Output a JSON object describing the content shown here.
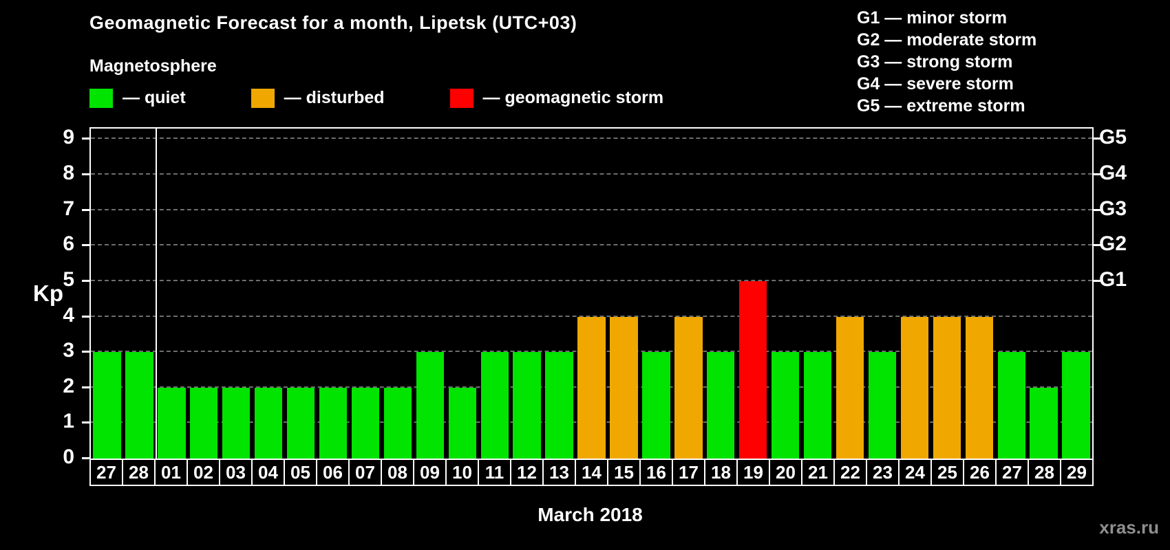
{
  "header": {
    "title": "Geomagnetic Forecast for a month, Lipetsk (UTC+03)",
    "subtitle": "Magnetosphere"
  },
  "legend": {
    "items": [
      {
        "key": "quiet",
        "label": "— quiet",
        "color": "#00e400"
      },
      {
        "key": "disturbed",
        "label": "— disturbed",
        "color": "#f0a800"
      },
      {
        "key": "storm",
        "label": "— geomagnetic storm",
        "color": "#ff0000"
      }
    ]
  },
  "g_legend": {
    "items": [
      "G1 — minor storm",
      "G2 — moderate storm",
      "G3 — strong storm",
      "G4 — severe storm",
      "G5 — extreme storm"
    ]
  },
  "chart_data": {
    "type": "bar",
    "title": "Geomagnetic Forecast for a month, Lipetsk (UTC+03)",
    "ylabel": "Kp",
    "xlabel": "March 2018",
    "ylim": [
      0,
      9.3
    ],
    "yticks": [
      0,
      1,
      2,
      3,
      4,
      5,
      6,
      7,
      8,
      9
    ],
    "grid": "dashed horizontal",
    "right_axis_labels": [
      {
        "label": "G5",
        "kp": 9
      },
      {
        "label": "G4",
        "kp": 8
      },
      {
        "label": "G3",
        "kp": 7
      },
      {
        "label": "G2",
        "kp": 6
      },
      {
        "label": "G1",
        "kp": 5
      }
    ],
    "categories": [
      "27",
      "28",
      "01",
      "02",
      "03",
      "04",
      "05",
      "06",
      "07",
      "08",
      "09",
      "10",
      "11",
      "12",
      "13",
      "14",
      "15",
      "16",
      "17",
      "18",
      "19",
      "20",
      "21",
      "22",
      "23",
      "24",
      "25",
      "26",
      "27",
      "28",
      "29"
    ],
    "values": [
      3,
      3,
      2,
      2,
      2,
      2,
      2,
      2,
      2,
      2,
      3,
      2,
      3,
      3,
      3,
      4,
      4,
      3,
      4,
      3,
      5,
      3,
      3,
      4,
      3,
      4,
      4,
      4,
      3,
      2,
      3
    ],
    "statuses": [
      "quiet",
      "quiet",
      "quiet",
      "quiet",
      "quiet",
      "quiet",
      "quiet",
      "quiet",
      "quiet",
      "quiet",
      "quiet",
      "quiet",
      "quiet",
      "quiet",
      "quiet",
      "disturbed",
      "disturbed",
      "quiet",
      "disturbed",
      "quiet",
      "storm",
      "quiet",
      "quiet",
      "disturbed",
      "quiet",
      "disturbed",
      "disturbed",
      "disturbed",
      "quiet",
      "quiet",
      "quiet"
    ],
    "colors": {
      "quiet": "#00e400",
      "disturbed": "#f0a800",
      "storm": "#ff0000"
    },
    "separator_after_index": 1,
    "background": "#000000",
    "legend_position": "top"
  },
  "watermark": "xras.ru"
}
